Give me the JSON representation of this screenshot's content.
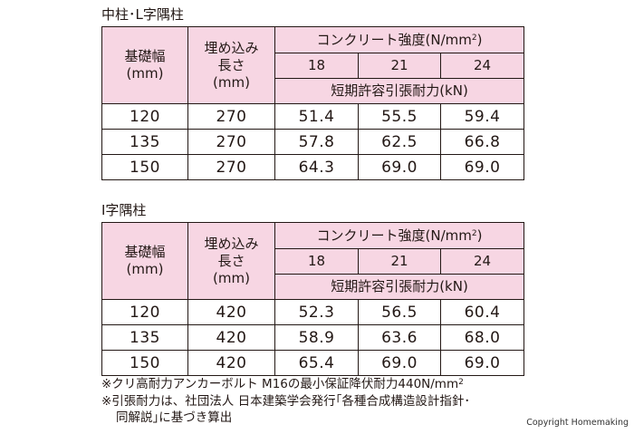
{
  "tables": [
    {
      "title": "中柱･L字隅柱",
      "headers": {
        "width": "基礎幅\n(mm)",
        "depth": "埋め込み\n長さ\n(mm)",
        "strength": "コンクリート強度(N/mm",
        "strength_sup": "2",
        "strength_suffix": ")",
        "grades": [
          "18",
          "21",
          "24"
        ],
        "tensile": "短期許容引張耐力(kN)"
      },
      "rows": [
        [
          "120",
          "270",
          "51.4",
          "55.5",
          "59.4"
        ],
        [
          "135",
          "270",
          "57.8",
          "62.5",
          "66.8"
        ],
        [
          "150",
          "270",
          "64.3",
          "69.0",
          "69.0"
        ]
      ]
    },
    {
      "title": "I字隅柱",
      "headers": {
        "width": "基礎幅\n(mm)",
        "depth": "埋め込み\n長さ\n(mm)",
        "strength": "コンクリート強度(N/mm",
        "strength_sup": "2",
        "strength_suffix": ")",
        "grades": [
          "18",
          "21",
          "24"
        ],
        "tensile": "短期許容引張耐力(kN)"
      },
      "rows": [
        [
          "120",
          "420",
          "52.3",
          "56.5",
          "60.4"
        ],
        [
          "135",
          "420",
          "58.9",
          "63.6",
          "68.0"
        ],
        [
          "150",
          "420",
          "65.4",
          "69.0",
          "69.0"
        ]
      ]
    }
  ],
  "notes": {
    "note1": "※クリ高耐力アンカーボルト M16の最小保証降伏耐力440N/mm",
    "note1_sup": "2",
    "note2_line1": "※引張耐力は、社団法人 日本建築学会発行｢各種合成構造設計指針･",
    "note2_line2": "同解説｣に基づき算出"
  },
  "copyright": "Copyright Homemaking",
  "colors": {
    "header_bg": "#f7d6e3",
    "text": "#231815",
    "border": "#231815"
  }
}
